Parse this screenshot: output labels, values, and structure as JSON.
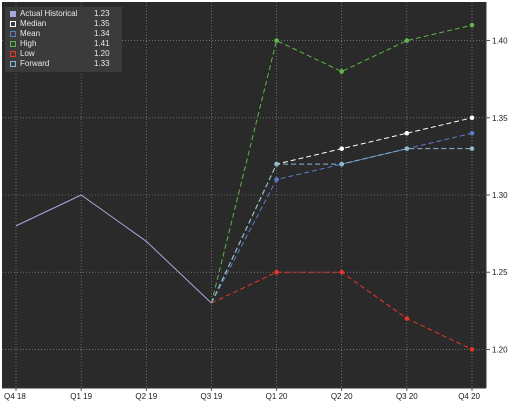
{
  "chart_data": {
    "type": "line",
    "categories": [
      "Q4 18",
      "Q1 19",
      "Q2 19",
      "Q3 19",
      "Q1 20",
      "Q2 20",
      "Q3 20",
      "Q4 20"
    ],
    "ylim": [
      1.175,
      1.425
    ],
    "y_ticks": [
      "1.20",
      "1.25",
      "1.30",
      "1.35",
      "1.40"
    ],
    "grid": true,
    "legend_position": "top-left",
    "series": [
      {
        "name": "Actual Historical",
        "legend_value": "1.23",
        "color": "#a6a8d8",
        "style": "solid",
        "marker": false,
        "x": [
          "Q4 18",
          "Q1 19",
          "Q2 19",
          "Q3 19"
        ],
        "values": [
          1.28,
          1.3,
          1.27,
          1.23
        ]
      },
      {
        "name": "Median",
        "legend_value": "1.35",
        "color": "#ffffff",
        "style": "dashed",
        "marker": true,
        "x": [
          "Q3 19",
          "Q1 20",
          "Q2 20",
          "Q3 20",
          "Q4 20"
        ],
        "values": [
          1.23,
          1.32,
          1.33,
          1.34,
          1.35
        ]
      },
      {
        "name": "Mean",
        "legend_value": "1.34",
        "color": "#5b7ec9",
        "style": "dashed",
        "marker": true,
        "x": [
          "Q3 19",
          "Q1 20",
          "Q2 20",
          "Q3 20",
          "Q4 20"
        ],
        "values": [
          1.23,
          1.31,
          1.32,
          1.33,
          1.34
        ]
      },
      {
        "name": "High",
        "legend_value": "1.41",
        "color": "#5fb64a",
        "style": "dashed",
        "marker": true,
        "x": [
          "Q3 19",
          "Q1 20",
          "Q2 20",
          "Q3 20",
          "Q4 20"
        ],
        "values": [
          1.23,
          1.4,
          1.38,
          1.4,
          1.41
        ]
      },
      {
        "name": "Low",
        "legend_value": "1.20",
        "color": "#e8362a",
        "style": "dashed",
        "marker": true,
        "x": [
          "Q3 19",
          "Q1 20",
          "Q2 20",
          "Q3 20",
          "Q4 20"
        ],
        "values": [
          1.23,
          1.25,
          1.25,
          1.22,
          1.2
        ]
      },
      {
        "name": "Forward",
        "legend_value": "1.33",
        "color": "#8fb8cc",
        "style": "dashed",
        "marker": true,
        "x": [
          "Q3 19",
          "Q1 20",
          "Q2 20",
          "Q3 20",
          "Q4 20"
        ],
        "values": [
          1.23,
          1.32,
          1.32,
          1.33,
          1.33
        ]
      }
    ]
  },
  "colors": {
    "plot_background": "#2a2a2a",
    "grid": "#9a9a9a",
    "legend_background": "#3b3b3b",
    "text": "#1a1a1a"
  }
}
